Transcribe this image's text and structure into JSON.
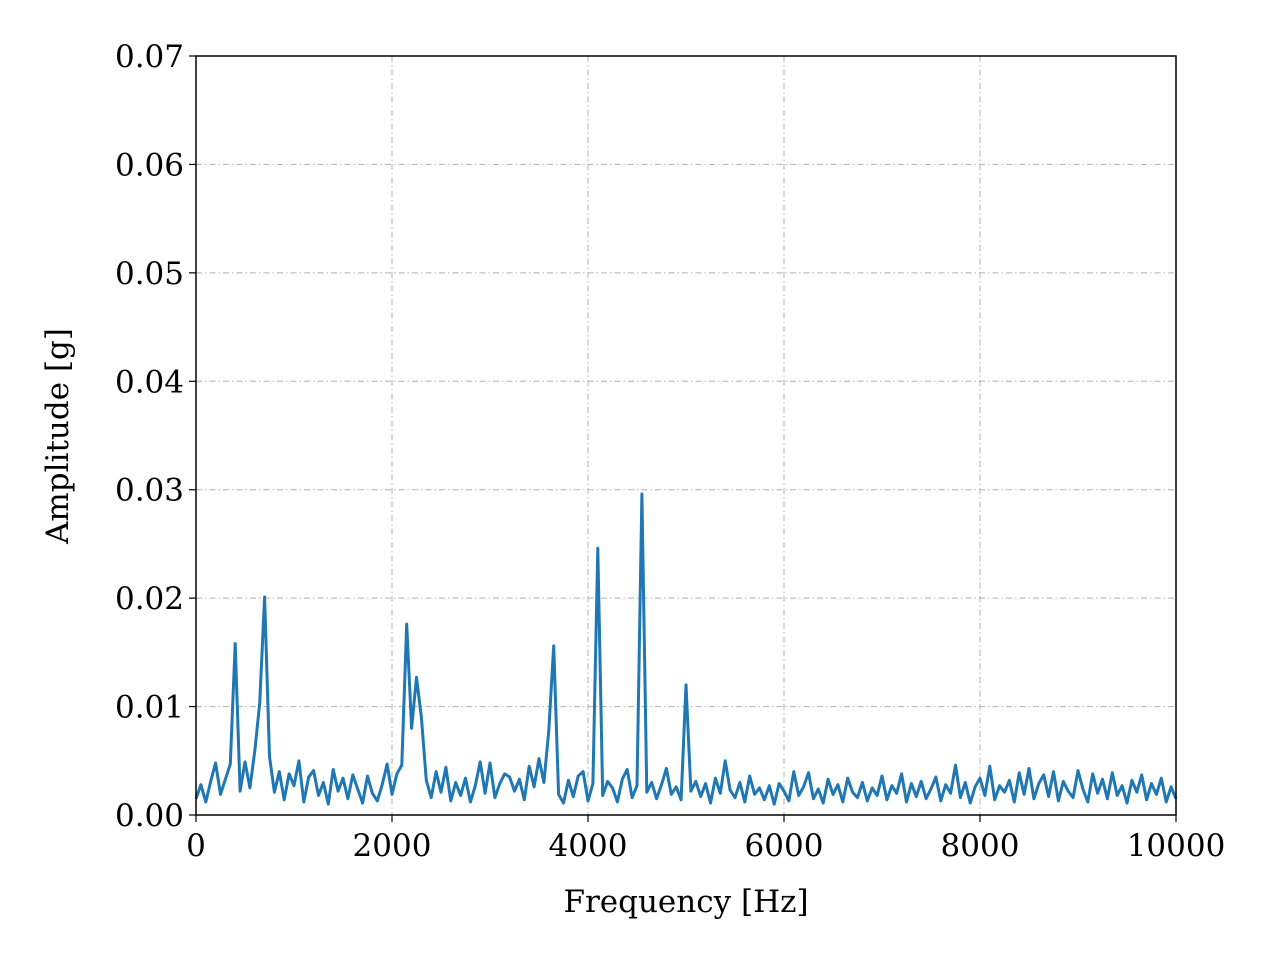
{
  "chart_data": {
    "type": "line",
    "xlabel": "Frequency [Hz]",
    "ylabel": "Amplitude [g]",
    "color": "#1f77b4",
    "grid": true,
    "xlim": [
      0,
      10000
    ],
    "ylim": [
      0,
      0.07
    ],
    "xticks": [
      0,
      2000,
      4000,
      6000,
      8000,
      10000
    ],
    "yticks": [
      {
        "value": 0,
        "label": "0.00"
      },
      0.01,
      0.02,
      0.03,
      0.04,
      0.05,
      0.06,
      0.07
    ],
    "x": [
      0,
      50,
      100,
      150,
      200,
      250,
      300,
      350,
      400,
      450,
      500,
      550,
      600,
      650,
      700,
      750,
      800,
      850,
      900,
      950,
      1000,
      1050,
      1100,
      1150,
      1200,
      1250,
      1300,
      1350,
      1400,
      1450,
      1500,
      1550,
      1600,
      1650,
      1700,
      1750,
      1800,
      1850,
      1900,
      1950,
      2000,
      2050,
      2100,
      2150,
      2200,
      2250,
      2300,
      2350,
      2400,
      2450,
      2500,
      2550,
      2600,
      2650,
      2700,
      2750,
      2800,
      2850,
      2900,
      2950,
      3000,
      3050,
      3100,
      3150,
      3200,
      3250,
      3300,
      3350,
      3400,
      3450,
      3500,
      3550,
      3600,
      3650,
      3700,
      3750,
      3800,
      3850,
      3900,
      3950,
      4000,
      4050,
      4100,
      4150,
      4200,
      4250,
      4300,
      4350,
      4400,
      4450,
      4500,
      4550,
      4600,
      4650,
      4700,
      4750,
      4800,
      4850,
      4900,
      4950,
      5000,
      5050,
      5100,
      5150,
      5200,
      5250,
      5300,
      5350,
      5400,
      5450,
      5500,
      5550,
      5600,
      5650,
      5700,
      5750,
      5800,
      5850,
      5900,
      5950,
      6000,
      6050,
      6100,
      6150,
      6200,
      6250,
      6300,
      6350,
      6400,
      6450,
      6500,
      6550,
      6600,
      6650,
      6700,
      6750,
      6800,
      6850,
      6900,
      6950,
      7000,
      7050,
      7100,
      7150,
      7200,
      7250,
      7300,
      7350,
      7400,
      7450,
      7500,
      7550,
      7600,
      7650,
      7700,
      7750,
      7800,
      7850,
      7900,
      7950,
      8000,
      8050,
      8100,
      8150,
      8200,
      8250,
      8300,
      8350,
      8400,
      8450,
      8500,
      8550,
      8600,
      8650,
      8700,
      8750,
      8800,
      8850,
      8900,
      8950,
      9000,
      9050,
      9100,
      9150,
      9200,
      9250,
      9300,
      9350,
      9400,
      9450,
      9500,
      9550,
      9600,
      9650,
      9700,
      9750,
      9800,
      9850,
      9900,
      9950,
      10000
    ],
    "values": [
      0.0015,
      0.0028,
      0.0012,
      0.0031,
      0.0048,
      0.0019,
      0.0033,
      0.0047,
      0.0158,
      0.0022,
      0.0049,
      0.0025,
      0.0059,
      0.0103,
      0.0201,
      0.0054,
      0.0021,
      0.004,
      0.0014,
      0.0038,
      0.0027,
      0.005,
      0.0012,
      0.0035,
      0.0041,
      0.0018,
      0.003,
      0.001,
      0.0042,
      0.0022,
      0.0034,
      0.0015,
      0.0037,
      0.0024,
      0.0011,
      0.0036,
      0.002,
      0.0013,
      0.0028,
      0.0047,
      0.0019,
      0.0038,
      0.0046,
      0.0176,
      0.008,
      0.0127,
      0.009,
      0.0032,
      0.0016,
      0.004,
      0.0021,
      0.0044,
      0.0013,
      0.003,
      0.0018,
      0.0034,
      0.0012,
      0.0027,
      0.0049,
      0.002,
      0.0048,
      0.0016,
      0.0029,
      0.0038,
      0.0035,
      0.0022,
      0.0033,
      0.0014,
      0.0045,
      0.0026,
      0.0052,
      0.003,
      0.0078,
      0.0156,
      0.0019,
      0.0011,
      0.0032,
      0.0017,
      0.0036,
      0.004,
      0.0013,
      0.0029,
      0.0246,
      0.0018,
      0.0031,
      0.0025,
      0.0012,
      0.0033,
      0.0042,
      0.0016,
      0.0027,
      0.0296,
      0.0021,
      0.003,
      0.0015,
      0.0028,
      0.0043,
      0.0019,
      0.0026,
      0.0014,
      0.012,
      0.0022,
      0.0031,
      0.0017,
      0.0029,
      0.0011,
      0.0034,
      0.002,
      0.005,
      0.0023,
      0.0016,
      0.003,
      0.0012,
      0.0036,
      0.0019,
      0.0025,
      0.0014,
      0.0027,
      0.001,
      0.0029,
      0.0022,
      0.0013,
      0.004,
      0.0018,
      0.0026,
      0.0039,
      0.0015,
      0.0024,
      0.0011,
      0.0033,
      0.0019,
      0.0028,
      0.0012,
      0.0034,
      0.0021,
      0.0016,
      0.003,
      0.0013,
      0.0025,
      0.0018,
      0.0036,
      0.0014,
      0.0027,
      0.002,
      0.0038,
      0.0012,
      0.0029,
      0.0017,
      0.0031,
      0.0015,
      0.0024,
      0.0035,
      0.0013,
      0.0028,
      0.002,
      0.0046,
      0.0016,
      0.003,
      0.0011,
      0.0026,
      0.0034,
      0.0018,
      0.0045,
      0.0014,
      0.0027,
      0.0021,
      0.0032,
      0.0012,
      0.0039,
      0.0019,
      0.0043,
      0.0015,
      0.0029,
      0.0037,
      0.0017,
      0.004,
      0.0013,
      0.0031,
      0.0022,
      0.0016,
      0.0041,
      0.0024,
      0.0012,
      0.0038,
      0.002,
      0.0033,
      0.0015,
      0.0039,
      0.0018,
      0.0027,
      0.0011,
      0.0032,
      0.0021,
      0.0037,
      0.0014,
      0.0029,
      0.0019,
      0.0034,
      0.0012,
      0.0026,
      0.0015
    ]
  }
}
